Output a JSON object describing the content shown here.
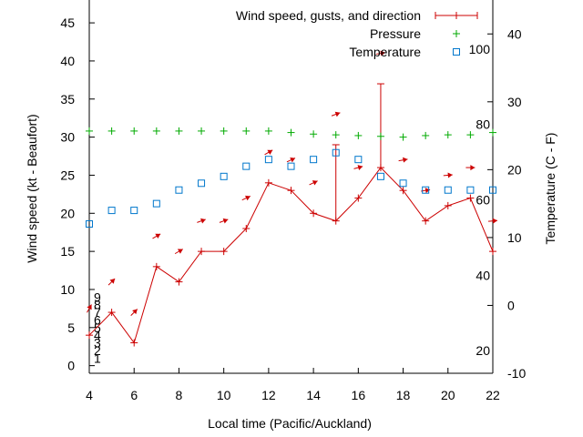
{
  "chart_data": {
    "type": "line",
    "xlabel": "Local time (Pacific/Auckland)",
    "ylabel": "Wind speed (kt - Beaufort)",
    "y2label": "Temperature (C - F)",
    "xlim": [
      4,
      22
    ],
    "ylim": [
      -1,
      48
    ],
    "y2lim": [
      -10,
      45
    ],
    "x_ticks": [
      4,
      6,
      8,
      10,
      12,
      14,
      16,
      18,
      20,
      22
    ],
    "y_ticks": [
      0,
      5,
      10,
      15,
      20,
      25,
      30,
      35,
      40,
      45
    ],
    "y2_ticks": [
      -10,
      0,
      10,
      20,
      30,
      40
    ],
    "beaufort_labels": [
      {
        "value": 1,
        "text": "1"
      },
      {
        "value": 2,
        "text": "2"
      },
      {
        "value": 3,
        "text": "3"
      },
      {
        "value": 4,
        "text": "4"
      },
      {
        "value": 5,
        "text": "5"
      },
      {
        "value": 6,
        "text": "6"
      },
      {
        "value": 7,
        "text": "7"
      },
      {
        "value": 8,
        "text": "8"
      },
      {
        "value": 9,
        "text": "9"
      }
    ],
    "fahrenheit_labels": [
      {
        "value": 20,
        "text": "20"
      },
      {
        "value": 40,
        "text": "40"
      },
      {
        "value": 60,
        "text": "60"
      },
      {
        "value": 80,
        "text": "80"
      },
      {
        "value": 100,
        "text": "100"
      }
    ],
    "legend_position": "top-right",
    "grid": false,
    "series": [
      {
        "name": "Wind speed, gusts, and direction",
        "color": "#cc0000",
        "x": [
          4,
          5,
          6,
          7,
          8,
          9,
          10,
          11,
          12,
          13,
          14,
          15,
          16,
          17,
          18,
          19,
          20,
          21,
          22
        ],
        "y": [
          4,
          7,
          3,
          13,
          11,
          15,
          15,
          18,
          24,
          23,
          20,
          19,
          22,
          26,
          23,
          19,
          21,
          22,
          15
        ],
        "gust": [
          null,
          null,
          null,
          null,
          null,
          null,
          null,
          null,
          null,
          null,
          null,
          29,
          null,
          37,
          null,
          null,
          null,
          null,
          null
        ],
        "arrows": [
          {
            "x": 4,
            "y": 7.5,
            "dir": 210
          },
          {
            "x": 5,
            "y": 11,
            "dir": 225
          },
          {
            "x": 6,
            "y": 7,
            "dir": 225
          },
          {
            "x": 7,
            "y": 17,
            "dir": 240
          },
          {
            "x": 8,
            "y": 15,
            "dir": 240
          },
          {
            "x": 9,
            "y": 19,
            "dir": 250
          },
          {
            "x": 10,
            "y": 19,
            "dir": 250
          },
          {
            "x": 11,
            "y": 22,
            "dir": 245
          },
          {
            "x": 12,
            "y": 28,
            "dir": 240
          },
          {
            "x": 13,
            "y": 27,
            "dir": 245
          },
          {
            "x": 14,
            "y": 24,
            "dir": 245
          },
          {
            "x": 15,
            "y": 33,
            "dir": 250
          },
          {
            "x": 16,
            "y": 26,
            "dir": 255
          },
          {
            "x": 17,
            "y": 41,
            "dir": 260
          },
          {
            "x": 18,
            "y": 27,
            "dir": 260
          },
          {
            "x": 19,
            "y": 23,
            "dir": 260
          },
          {
            "x": 20,
            "y": 25,
            "dir": 265
          },
          {
            "x": 21,
            "y": 26,
            "dir": 270
          },
          {
            "x": 22,
            "y": 19,
            "dir": 265
          }
        ]
      },
      {
        "name": "Pressure",
        "color": "#00aa00",
        "axis": "left",
        "x": [
          4,
          5,
          6,
          7,
          8,
          9,
          10,
          11,
          12,
          13,
          14,
          15,
          16,
          17,
          18,
          19,
          20,
          21,
          22
        ],
        "y": [
          30.8,
          30.8,
          30.8,
          30.8,
          30.8,
          30.8,
          30.8,
          30.8,
          30.8,
          30.6,
          30.4,
          30.3,
          30.2,
          30.1,
          30.0,
          30.2,
          30.3,
          30.3,
          30.6
        ]
      },
      {
        "name": "Temperature",
        "color": "#0077cc",
        "axis": "right",
        "x": [
          4,
          5,
          6,
          7,
          8,
          9,
          10,
          11,
          12,
          13,
          14,
          15,
          16,
          17,
          18,
          19,
          20,
          21,
          22
        ],
        "y": [
          12,
          14,
          14,
          15,
          17,
          18,
          19,
          20.5,
          21.5,
          20.5,
          21.5,
          22.5,
          21.5,
          19,
          18,
          17,
          17,
          17,
          17
        ]
      }
    ]
  }
}
